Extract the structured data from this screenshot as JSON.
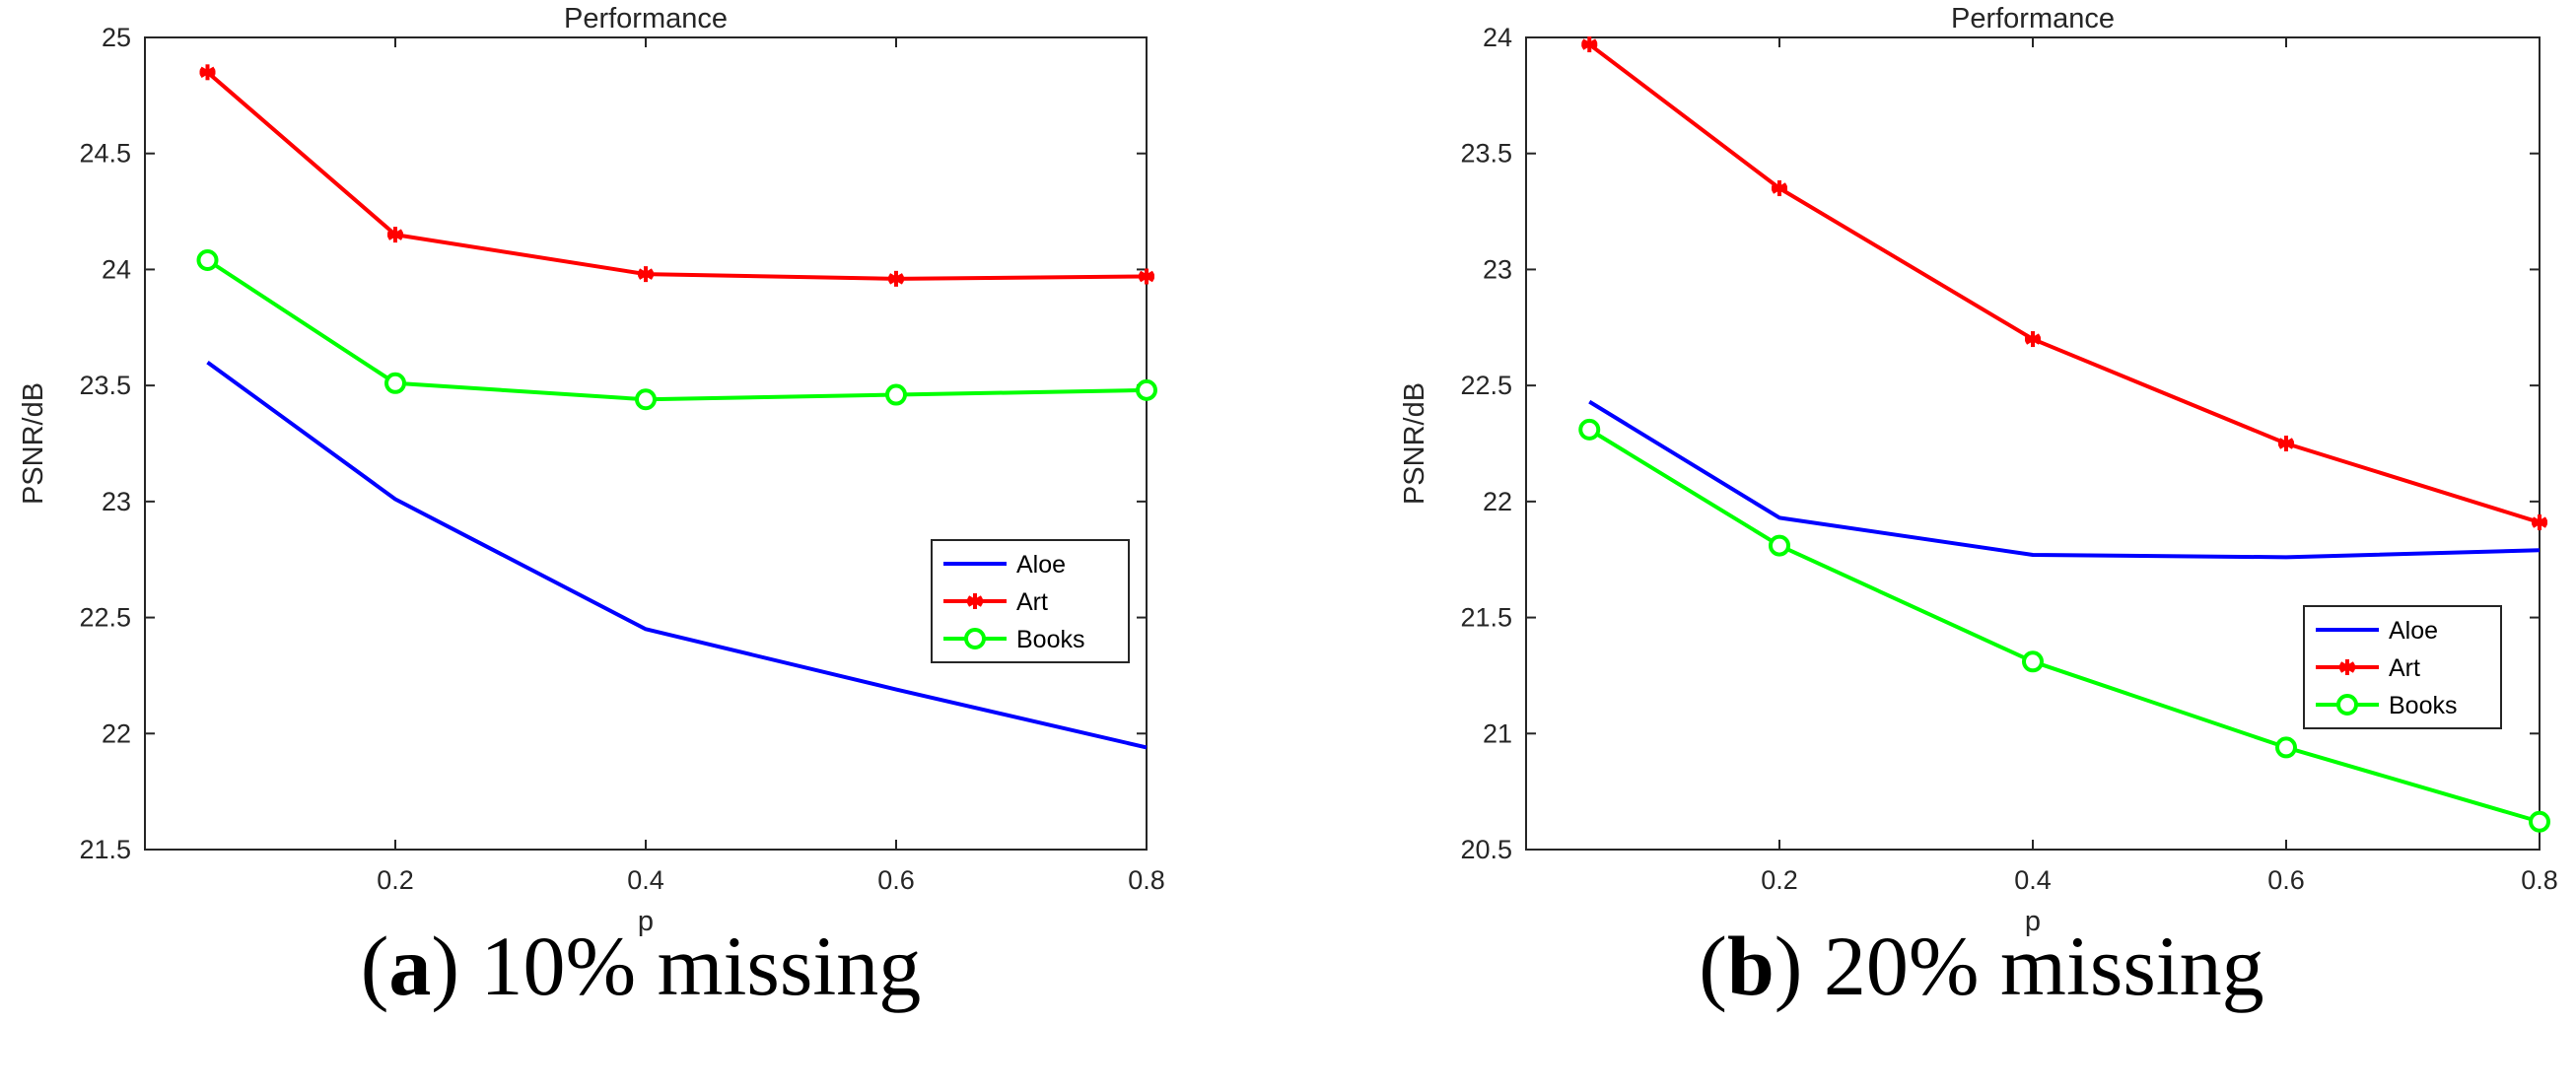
{
  "chart_data": [
    {
      "type": "line",
      "panel": "a",
      "title": "Performance",
      "xlabel": "p",
      "ylabel": "PSNR/dB",
      "xlim": [
        0,
        0.8
      ],
      "ylim": [
        21.5,
        25
      ],
      "xticks": [
        0.2,
        0.4,
        0.6,
        0.8
      ],
      "yticks": [
        21.5,
        22,
        22.5,
        23,
        23.5,
        24,
        24.5,
        25
      ],
      "x": [
        0.05,
        0.2,
        0.4,
        0.6,
        0.8
      ],
      "legend_position": "right",
      "series": [
        {
          "name": "Aloe",
          "color": "#0000ff",
          "marker": "none",
          "values": [
            23.6,
            23.01,
            22.45,
            22.19,
            21.94
          ]
        },
        {
          "name": "Art",
          "color": "#ff0000",
          "marker": "asterisk",
          "values": [
            24.85,
            24.15,
            23.98,
            23.96,
            23.97
          ]
        },
        {
          "name": "Books",
          "color": "#00ff00",
          "marker": "circle",
          "values": [
            24.04,
            23.51,
            23.44,
            23.46,
            23.48
          ]
        }
      ],
      "caption": {
        "letter": "a",
        "text": "10% missing"
      }
    },
    {
      "type": "line",
      "panel": "b",
      "title": "Performance",
      "xlabel": "p",
      "ylabel": "PSNR/dB",
      "xlim": [
        0,
        0.8
      ],
      "ylim": [
        20.5,
        24
      ],
      "xticks": [
        0.2,
        0.4,
        0.6,
        0.8
      ],
      "yticks": [
        20.5,
        21,
        21.5,
        22,
        22.5,
        23,
        23.5,
        24
      ],
      "x": [
        0.05,
        0.2,
        0.4,
        0.6,
        0.8
      ],
      "legend_position": "lower-right",
      "series": [
        {
          "name": "Aloe",
          "color": "#0000ff",
          "marker": "none",
          "values": [
            22.43,
            21.93,
            21.77,
            21.76,
            21.79
          ]
        },
        {
          "name": "Art",
          "color": "#ff0000",
          "marker": "asterisk",
          "values": [
            23.97,
            23.35,
            22.7,
            22.25,
            21.91
          ]
        },
        {
          "name": "Books",
          "color": "#00ff00",
          "marker": "circle",
          "values": [
            22.31,
            21.81,
            21.31,
            20.94,
            20.62
          ]
        }
      ],
      "caption": {
        "letter": "b",
        "text": "20% missing"
      }
    }
  ]
}
